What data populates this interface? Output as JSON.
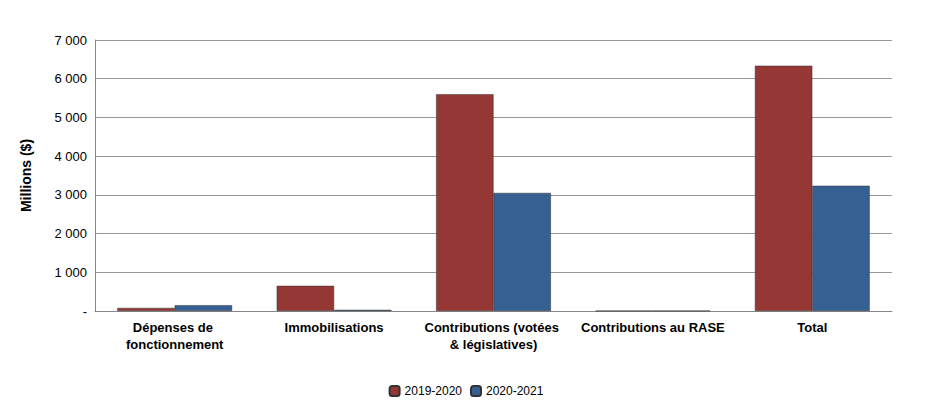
{
  "chart_data": {
    "type": "bar",
    "y_label": "Millions ($)",
    "categories": [
      "Dépenses de fonctionnement",
      "Immobilisations",
      "Contributions (votées & législatives)",
      "Contributions au RASE",
      "Total"
    ],
    "series": [
      {
        "name": "2019-2020",
        "color": "#953735",
        "values": [
          80,
          650,
          5600,
          5,
          6335
        ]
      },
      {
        "name": "2020-2021",
        "color": "#376092",
        "values": [
          150,
          30,
          3050,
          5,
          3235
        ]
      }
    ],
    "ylim": [
      0,
      7000
    ],
    "yticks": [
      {
        "value": 0,
        "label": "-"
      },
      {
        "value": 1000,
        "label": "1 000"
      },
      {
        "value": 2000,
        "label": "2 000"
      },
      {
        "value": 3000,
        "label": "3 000"
      },
      {
        "value": 4000,
        "label": "4 000"
      },
      {
        "value": 5000,
        "label": "5 000"
      },
      {
        "value": 6000,
        "label": "6 000"
      },
      {
        "value": 7000,
        "label": "7 000"
      }
    ],
    "grid": true,
    "legend": "bottom"
  }
}
